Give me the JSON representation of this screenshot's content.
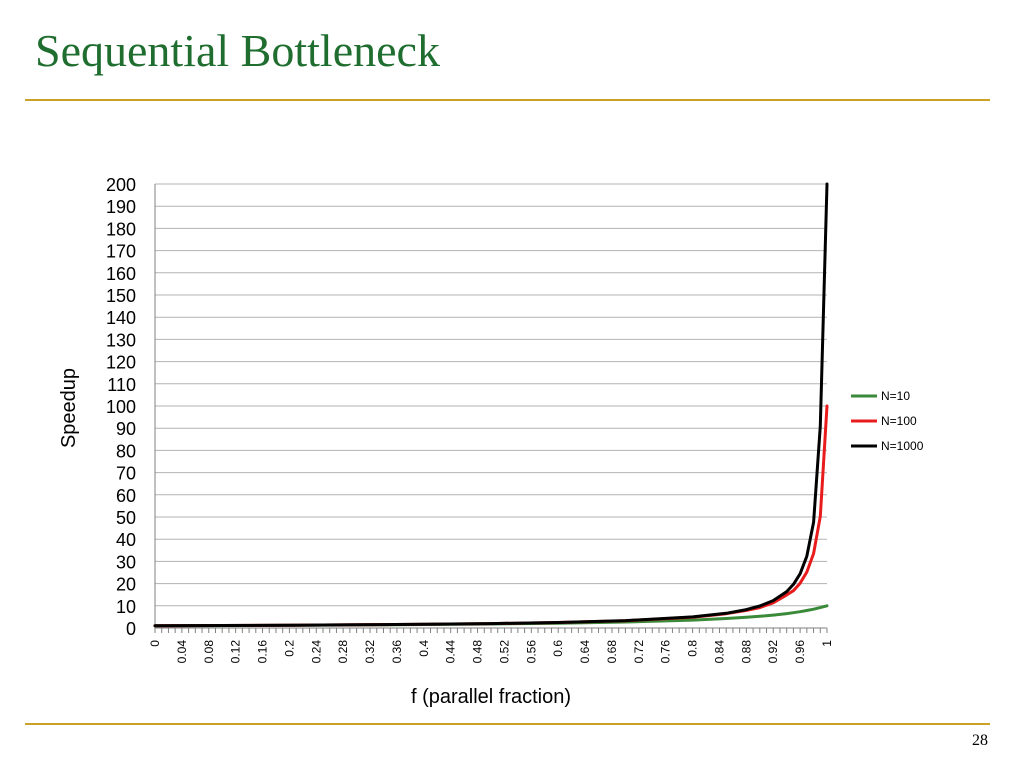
{
  "slide": {
    "title": "Sequential Bottleneck",
    "page_number": "28"
  },
  "colors": {
    "title": "#1f6e2f",
    "rule": "#c9a227",
    "gridline": "#b3b3b3"
  },
  "chart_data": {
    "type": "line",
    "title": "",
    "xlabel": "f (parallel fraction)",
    "ylabel": "Speedup",
    "xlim": [
      0,
      1
    ],
    "ylim": [
      0,
      200
    ],
    "grid": true,
    "legend_position": "right",
    "y_ticks": [
      0,
      10,
      20,
      30,
      40,
      50,
      60,
      70,
      80,
      90,
      100,
      110,
      120,
      130,
      140,
      150,
      160,
      170,
      180,
      190,
      200
    ],
    "x_tick_labels": [
      "0",
      "0.04",
      "0.08",
      "0.12",
      "0.16",
      "0.2",
      "0.24",
      "0.28",
      "0.32",
      "0.36",
      "0.4",
      "0.44",
      "0.48",
      "0.52",
      "0.56",
      "0.6",
      "0.64",
      "0.68",
      "0.72",
      "0.76",
      "0.8",
      "0.84",
      "0.88",
      "0.92",
      "0.96",
      "1"
    ],
    "x": [
      0,
      0.1,
      0.2,
      0.3,
      0.4,
      0.5,
      0.6,
      0.7,
      0.8,
      0.85,
      0.88,
      0.9,
      0.92,
      0.94,
      0.95,
      0.96,
      0.97,
      0.98,
      0.99,
      1
    ],
    "series": [
      {
        "name": "N=10",
        "color": "#3a8a3a",
        "values": [
          1.0,
          1.1,
          1.22,
          1.37,
          1.56,
          1.82,
          2.17,
          2.7,
          3.57,
          4.26,
          4.81,
          5.26,
          5.81,
          6.49,
          6.9,
          7.35,
          7.87,
          8.47,
          9.17,
          10.0
        ]
      },
      {
        "name": "N=100",
        "color": "#e81c1c",
        "values": [
          1.0,
          1.11,
          1.25,
          1.42,
          1.66,
          1.98,
          2.46,
          3.26,
          4.81,
          6.43,
          7.94,
          9.17,
          11.36,
          14.93,
          16.81,
          20.16,
          25.19,
          33.56,
          50.25,
          100.0
        ]
      },
      {
        "name": "N=1000",
        "color": "#000000",
        "values": [
          1.0,
          1.11,
          1.25,
          1.43,
          1.67,
          2.0,
          2.5,
          3.33,
          4.98,
          6.63,
          8.27,
          9.91,
          12.35,
          16.4,
          19.63,
          24.4,
          32.28,
          47.66,
          90.99,
          200.0
        ]
      }
    ]
  }
}
